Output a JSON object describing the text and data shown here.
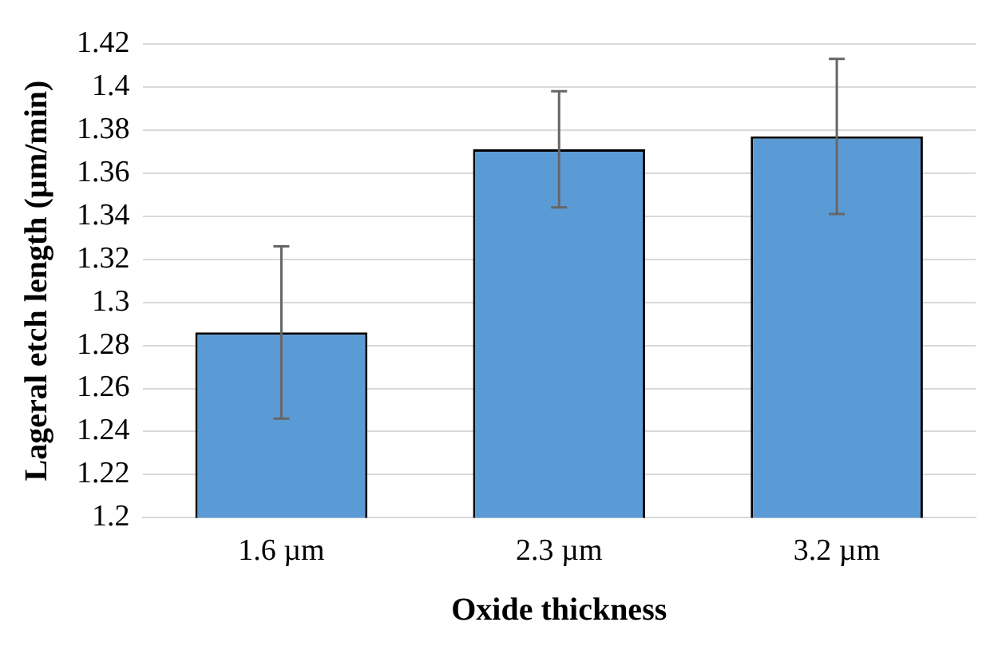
{
  "chart_data": {
    "type": "bar",
    "xlabel": "Oxide thickness",
    "ylabel": "Lageral etch length (µm/min)",
    "categories": [
      "1.6 µm",
      "2.3 µm",
      "3.2 µm"
    ],
    "values": [
      1.286,
      1.371,
      1.377
    ],
    "errors": [
      0.04,
      0.027,
      0.036
    ],
    "color": "#5b9bd5",
    "ylim": [
      1.2,
      1.42
    ],
    "yticks": [
      1.2,
      1.22,
      1.24,
      1.26,
      1.28,
      1.3,
      1.32,
      1.34,
      1.36,
      1.38,
      1.4,
      1.42
    ],
    "grid": "y",
    "legend": false
  }
}
